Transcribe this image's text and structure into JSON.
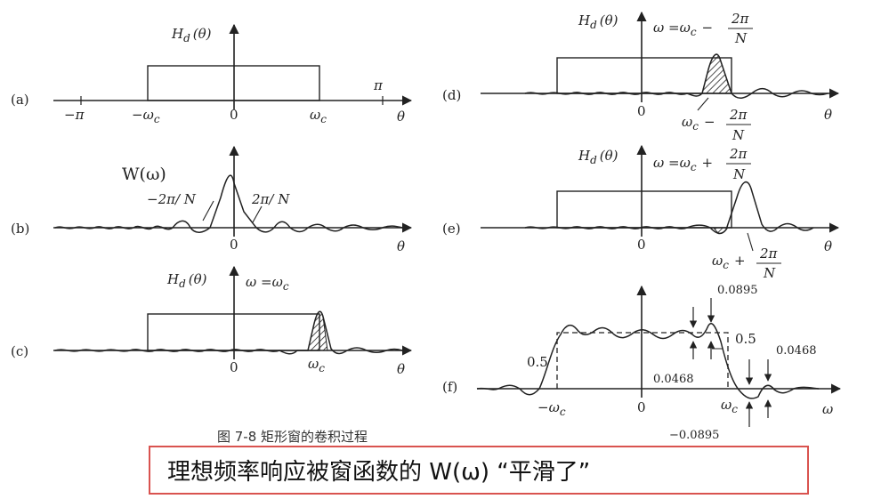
{
  "panels": {
    "a": {
      "tag": "(a)",
      "y_label": "H",
      "y_sub": "d",
      "y_arg": "(θ)",
      "neg_pi": "−π",
      "pi": "π",
      "neg_wc": "−ω",
      "wc": "ω",
      "wc_sub": "c",
      "zero": "0",
      "theta": "θ"
    },
    "b": {
      "tag": "(b)",
      "title": "W(ω)",
      "left_width": "−2π/ N",
      "right_width": "2π/ N",
      "zero": "0",
      "theta": "θ"
    },
    "c": {
      "tag": "(c)",
      "y_label": "H",
      "y_sub": "d",
      "y_arg": "(θ)",
      "omega_eq": "ω =ω",
      "omega_sub": "c",
      "wc": "ω",
      "wc_sub": "c",
      "zero": "0",
      "theta": "θ"
    },
    "d": {
      "tag": "(d)",
      "y_label": "H",
      "y_sub": "d",
      "y_arg": "(θ)",
      "omega_eq": "ω =ω",
      "omega_sub": "c",
      "minus": "−",
      "frac_num": "2π",
      "frac_den": "N",
      "low_w": "ω",
      "low_sub": "c",
      "low_minus": "−",
      "low_num": "2π",
      "low_den": "N",
      "zero": "0",
      "theta": "θ"
    },
    "e": {
      "tag": "(e)",
      "y_label": "H",
      "y_sub": "d",
      "y_arg": "(θ)",
      "omega_eq": "ω =ω",
      "omega_sub": "c",
      "plus": "+",
      "frac_num": "2π",
      "frac_den": "N",
      "low_w": "ω",
      "low_sub": "c",
      "low_plus": "+",
      "low_num": "2π",
      "low_den": "N",
      "zero": "0",
      "theta": "θ"
    },
    "f": {
      "tag": "(f)",
      "v0895": "0.0895",
      "v05_right": "0.5",
      "v05_left": "0.5",
      "v0468_top": "0.0468",
      "v0468_mid": "0.0468",
      "vneg0895": "−0.0895",
      "neg_wc": "−ω",
      "wc": "ω",
      "wc_sub": "c",
      "zero": "0",
      "omega": "ω"
    }
  },
  "caption": "图 7-8   矩形窗的卷积过程",
  "banner": {
    "text": "理想频率响应被窗函数的 W(ω) “平滑了”",
    "border_color": "#d9534f"
  }
}
